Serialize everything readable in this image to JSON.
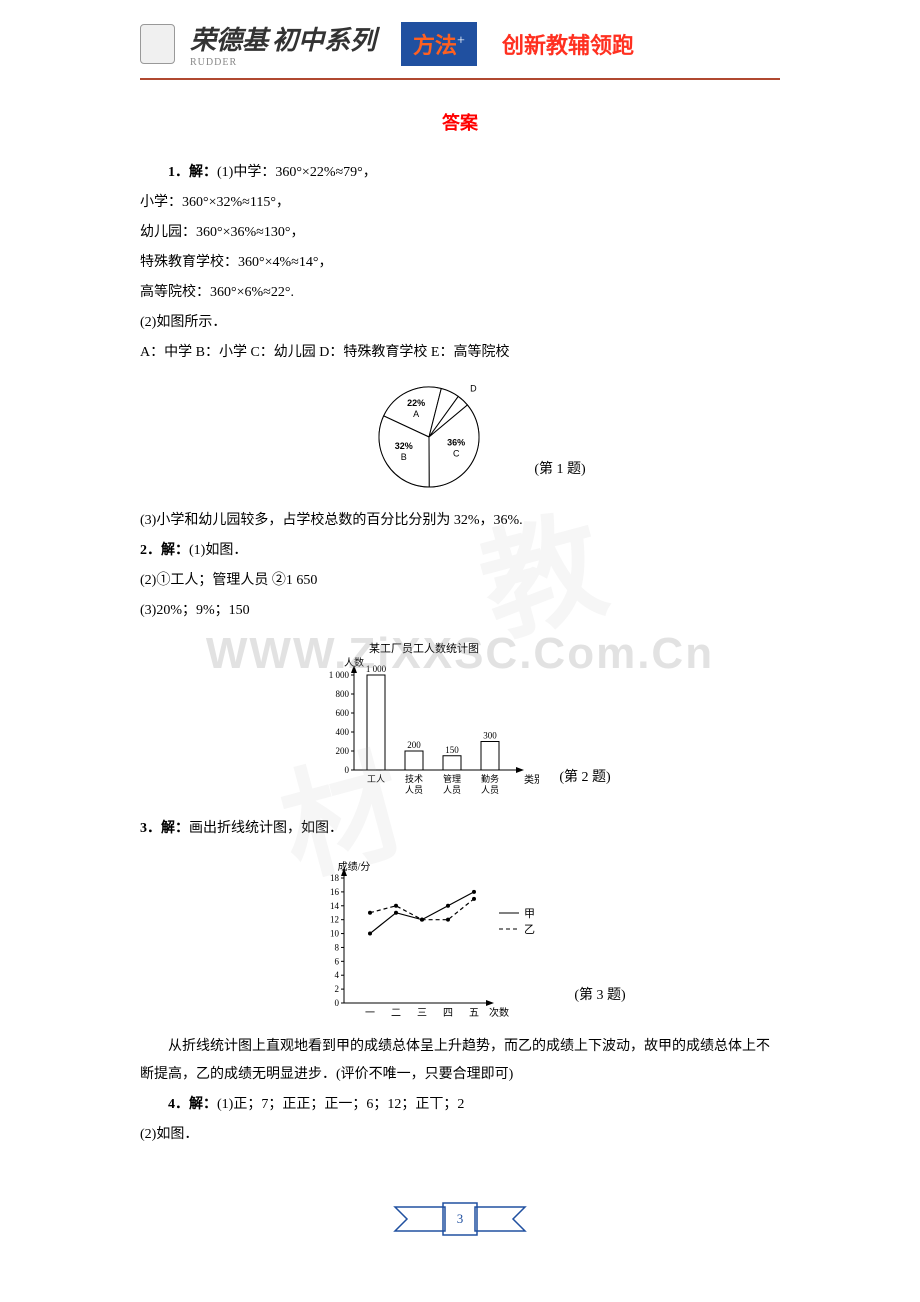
{
  "header": {
    "brand": "荣德基",
    "brand_sub": "RUDDER",
    "series": "初中系列",
    "fangfa": "方法",
    "plus": "+",
    "slogan": "创新教辅领跑"
  },
  "page_title": "答案",
  "q1": {
    "label": "1．解：",
    "part1": "(1)中学：360°×22%≈79°，",
    "line2": "小学：360°×32%≈115°，",
    "line3": "幼儿园：360°×36%≈130°，",
    "line4": "特殊教育学校：360°×4%≈14°，",
    "line5": "高等院校：360°×6%≈22°.",
    "part2": "(2)如图所示．",
    "legend": "A：中学  B：小学  C：幼儿园  D：特殊教育学校  E：高等院校",
    "part3": " (3)小学和幼儿园较多，占学校总数的百分比分别为 32%，36%.",
    "caption": "(第 1 题)",
    "pie": {
      "slices": [
        {
          "label": "A",
          "pct": "22%",
          "value": 22,
          "color": "#ffffff"
        },
        {
          "label": "E",
          "pct": "6%",
          "value": 6,
          "color": "#ffffff"
        },
        {
          "label": "D",
          "pct": "4%",
          "value": 4,
          "color": "#ffffff"
        },
        {
          "label": "C",
          "pct": "36%",
          "value": 36,
          "color": "#ffffff"
        },
        {
          "label": "B",
          "pct": "32%",
          "value": 32,
          "color": "#ffffff"
        }
      ],
      "stroke": "#000000",
      "label_fontsize": 9,
      "radius": 50
    }
  },
  "q2": {
    "label": "2．解：",
    "part1": "(1)如图．",
    "part2": "(2)①工人；管理人员  ②1 650",
    "part3": "(3)20%；9%；150",
    "caption": "(第 2 题)",
    "bar": {
      "title": "某工厂员工人数统计图",
      "ylabel": "人数",
      "xlabel": "类别",
      "categories": [
        "工人",
        "技术\n人员",
        "管理\n人员",
        "勤务\n人员"
      ],
      "values": [
        1000,
        200,
        150,
        300
      ],
      "value_labels": [
        "1 000",
        "200",
        "150",
        "300"
      ],
      "yticks": [
        0,
        200,
        400,
        600,
        800,
        1000
      ],
      "ytick_labels": [
        "0",
        "200",
        "400",
        "600",
        "800",
        "1 000"
      ],
      "bar_color": "#ffffff",
      "bar_stroke": "#000000",
      "axis_color": "#000000",
      "title_fontsize": 11,
      "label_fontsize": 9
    }
  },
  "q3": {
    "label": "3．解：",
    "text": "画出折线统计图，如图．",
    "explain": "从折线统计图上直观地看到甲的成绩总体呈上升趋势，而乙的成绩上下波动，故甲的成绩总体上不断提高，乙的成绩无明显进步．(评价不唯一，只要合理即可)",
    "caption": "(第 3 题)",
    "line": {
      "ylabel": "成绩/分",
      "xlabel": "次数",
      "xticks": [
        "一",
        "二",
        "三",
        "四",
        "五"
      ],
      "yticks": [
        0,
        2,
        4,
        6,
        8,
        10,
        12,
        14,
        16,
        18
      ],
      "series": [
        {
          "name": "甲",
          "values": [
            10,
            13,
            12,
            14,
            16
          ],
          "style": "solid",
          "color": "#000000"
        },
        {
          "name": "乙",
          "values": [
            13,
            14,
            12,
            12,
            15
          ],
          "style": "dashed",
          "color": "#000000"
        }
      ],
      "axis_color": "#000000",
      "label_fontsize": 9
    }
  },
  "q4": {
    "label": "4．解：",
    "part1": "(1)正；7；正正；正一；6；12；正丅；2",
    "part2": "(2)如图．"
  },
  "watermark": "WWW.ZiXXSC.Com.Cn",
  "page_number": "3"
}
